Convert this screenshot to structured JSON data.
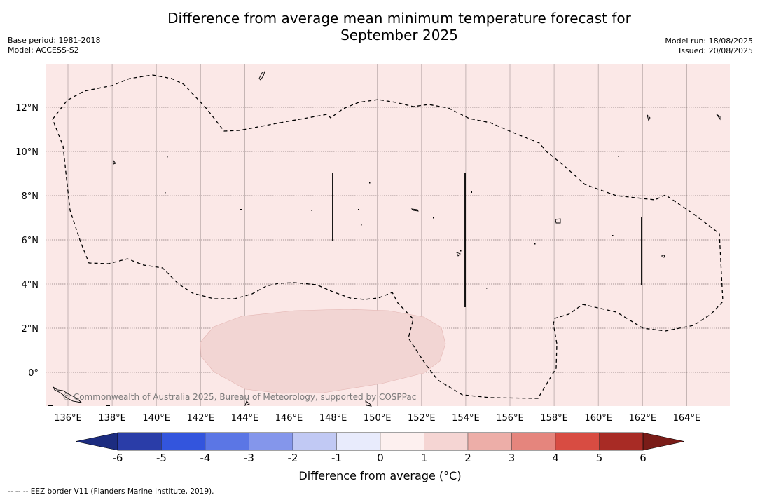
{
  "title": {
    "line1": "Difference from average mean minimum temperature forecast for",
    "line2": "September 2025"
  },
  "meta_left": {
    "base_period": "Base period: 1981-2018",
    "model": "Model: ACCESS-S2"
  },
  "meta_right": {
    "model_run": "Model run: 18/08/2025",
    "issued": "Issued: 20/08/2025"
  },
  "map": {
    "x_ticks": [
      "136°E",
      "138°E",
      "140°E",
      "142°E",
      "144°E",
      "146°E",
      "148°E",
      "150°E",
      "152°E",
      "154°E",
      "156°E",
      "158°E",
      "160°E",
      "162°E",
      "164°E"
    ],
    "y_ticks": [
      "12°N",
      "10°N",
      "8°N",
      "6°N",
      "4°N",
      "2°N",
      "0°"
    ],
    "background_color": "#fbe8e7",
    "anomaly_patch_color": "#f2d5d3",
    "copyright": "© Commonwealth of Australia 2025, Bureau of Meteorology, supported by COSPPac"
  },
  "colorbar": {
    "ticks": [
      "-6",
      "-5",
      "-4",
      "-3",
      "-2",
      "-1",
      "0",
      "1",
      "2",
      "3",
      "4",
      "5",
      "6"
    ],
    "colors": [
      "#2a3da8",
      "#3355dd",
      "#5b76e5",
      "#8496eb",
      "#c1c9f4",
      "#e8ebfc",
      "#fdf0ef",
      "#f5d5d3",
      "#edaea8",
      "#e5857d",
      "#d84c42",
      "#a82b25"
    ],
    "low_extend_color": "#1c2c80",
    "high_extend_color": "#7a1c18",
    "label": "Difference from average (°C)"
  },
  "footnote": "--  --  -- EEZ border V11 (Flanders Marine Institute, 2019)."
}
